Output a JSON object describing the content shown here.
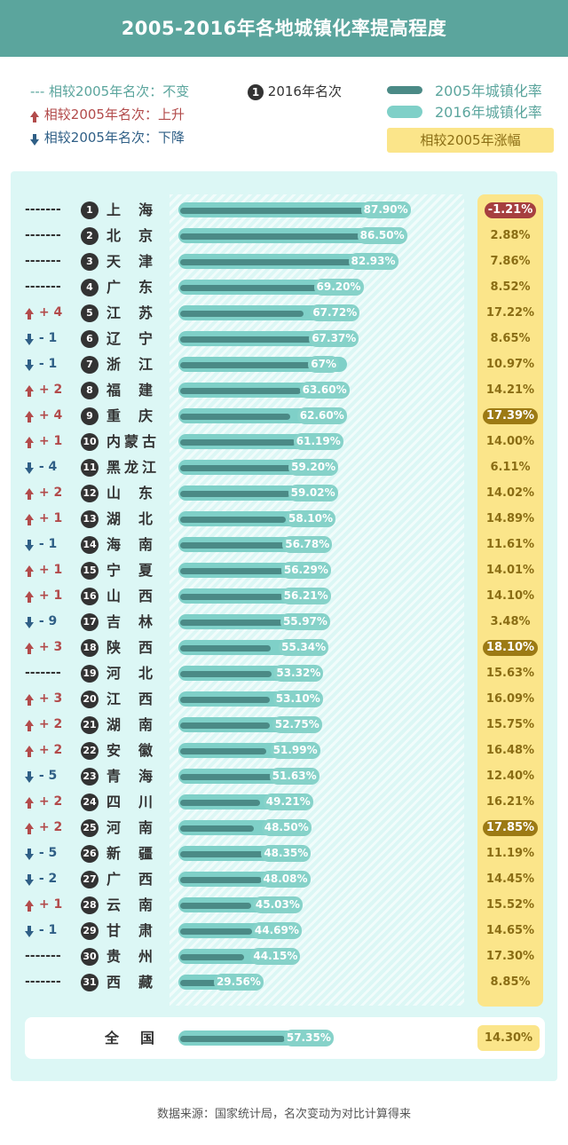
{
  "title": "2005-2016年各地城镇化率提高程度",
  "legend": {
    "same": "相较2005年名次：不变",
    "same_prefix": "---",
    "up": "相较2005年名次：上升",
    "down": "相较2005年名次：下降",
    "rank_dot": "1",
    "rank_label": "2016年名次",
    "bar2005": "2005年城镇化率",
    "bar2016": "2016年城镇化率",
    "increase": "相较2005年涨幅"
  },
  "colors": {
    "header": "#5ba59d",
    "bar2005": "#4b8a86",
    "bar2016": "#7fd0c8",
    "increase_bg": "#fbe58a",
    "up": "#b24b4b",
    "down": "#2f5f86"
  },
  "chart_data": {
    "type": "bar",
    "title": "2005-2016年各地城镇化率提高程度",
    "series_names": [
      "2005年城镇化率",
      "2016年城镇化率",
      "相较2005年涨幅"
    ],
    "rows": [
      {
        "rank": "1",
        "name": "上海",
        "dir": "same",
        "change": "-------",
        "rate2016": 87.9,
        "label2016": "87.90%",
        "increase": -1.21,
        "inc_label": "-1.21%",
        "hl": "neg"
      },
      {
        "rank": "2",
        "name": "北京",
        "dir": "same",
        "change": "-------",
        "rate2016": 86.5,
        "label2016": "86.50%",
        "increase": 2.88,
        "inc_label": "2.88%",
        "hl": ""
      },
      {
        "rank": "3",
        "name": "天津",
        "dir": "same",
        "change": "-------",
        "rate2016": 82.93,
        "label2016": "82.93%",
        "increase": 7.86,
        "inc_label": "7.86%",
        "hl": ""
      },
      {
        "rank": "4",
        "name": "广东",
        "dir": "same",
        "change": "-------",
        "rate2016": 69.2,
        "label2016": "69.20%",
        "increase": 8.52,
        "inc_label": "8.52%",
        "hl": ""
      },
      {
        "rank": "5",
        "name": "江苏",
        "dir": "up",
        "change": "+ 4",
        "rate2016": 67.72,
        "label2016": "67.72%",
        "increase": 17.22,
        "inc_label": "17.22%",
        "hl": ""
      },
      {
        "rank": "6",
        "name": "辽宁",
        "dir": "down",
        "change": "- 1",
        "rate2016": 67.37,
        "label2016": "67.37%",
        "increase": 8.65,
        "inc_label": "8.65%",
        "hl": ""
      },
      {
        "rank": "7",
        "name": "浙江",
        "dir": "down",
        "change": "- 1",
        "rate2016": 67,
        "label2016": "67%",
        "increase": 10.97,
        "inc_label": "10.97%",
        "hl": ""
      },
      {
        "rank": "8",
        "name": "福建",
        "dir": "up",
        "change": "+ 2",
        "rate2016": 63.6,
        "label2016": "63.60%",
        "increase": 14.21,
        "inc_label": "14.21%",
        "hl": ""
      },
      {
        "rank": "9",
        "name": "重庆",
        "dir": "up",
        "change": "+ 4",
        "rate2016": 62.6,
        "label2016": "62.60%",
        "increase": 17.39,
        "inc_label": "17.39%",
        "hl": "pos"
      },
      {
        "rank": "10",
        "name": "内蒙古",
        "dir": "up",
        "change": "+ 1",
        "rate2016": 61.19,
        "label2016": "61.19%",
        "increase": 14.0,
        "inc_label": "14.00%",
        "hl": ""
      },
      {
        "rank": "11",
        "name": "黑龙江",
        "dir": "down",
        "change": "- 4",
        "rate2016": 59.2,
        "label2016": "59.20%",
        "increase": 6.11,
        "inc_label": "6.11%",
        "hl": ""
      },
      {
        "rank": "12",
        "name": "山东",
        "dir": "up",
        "change": "+ 2",
        "rate2016": 59.02,
        "label2016": "59.02%",
        "increase": 14.02,
        "inc_label": "14.02%",
        "hl": ""
      },
      {
        "rank": "13",
        "name": "湖北",
        "dir": "up",
        "change": "+ 1",
        "rate2016": 58.1,
        "label2016": "58.10%",
        "increase": 14.89,
        "inc_label": "14.89%",
        "hl": ""
      },
      {
        "rank": "14",
        "name": "海南",
        "dir": "down",
        "change": "- 1",
        "rate2016": 56.78,
        "label2016": "56.78%",
        "increase": 11.61,
        "inc_label": "11.61%",
        "hl": ""
      },
      {
        "rank": "15",
        "name": "宁夏",
        "dir": "up",
        "change": "+ 1",
        "rate2016": 56.29,
        "label2016": "56.29%",
        "increase": 14.01,
        "inc_label": "14.01%",
        "hl": ""
      },
      {
        "rank": "16",
        "name": "山西",
        "dir": "up",
        "change": "+ 1",
        "rate2016": 56.21,
        "label2016": "56.21%",
        "increase": 14.1,
        "inc_label": "14.10%",
        "hl": ""
      },
      {
        "rank": "17",
        "name": "吉林",
        "dir": "down",
        "change": "- 9",
        "rate2016": 55.97,
        "label2016": "55.97%",
        "increase": 3.48,
        "inc_label": "3.48%",
        "hl": ""
      },
      {
        "rank": "18",
        "name": "陕西",
        "dir": "up",
        "change": "+ 3",
        "rate2016": 55.34,
        "label2016": "55.34%",
        "increase": 18.1,
        "inc_label": "18.10%",
        "hl": "pos"
      },
      {
        "rank": "19",
        "name": "河北",
        "dir": "same",
        "change": "-------",
        "rate2016": 53.32,
        "label2016": "53.32%",
        "increase": 15.63,
        "inc_label": "15.63%",
        "hl": ""
      },
      {
        "rank": "20",
        "name": "江西",
        "dir": "up",
        "change": "+ 3",
        "rate2016": 53.1,
        "label2016": "53.10%",
        "increase": 16.09,
        "inc_label": "16.09%",
        "hl": ""
      },
      {
        "rank": "21",
        "name": "湖南",
        "dir": "up",
        "change": "+ 2",
        "rate2016": 52.75,
        "label2016": "52.75%",
        "increase": 15.75,
        "inc_label": "15.75%",
        "hl": ""
      },
      {
        "rank": "22",
        "name": "安徽",
        "dir": "up",
        "change": "+ 2",
        "rate2016": 51.99,
        "label2016": "51.99%",
        "increase": 16.48,
        "inc_label": "16.48%",
        "hl": ""
      },
      {
        "rank": "23",
        "name": "青海",
        "dir": "down",
        "change": "- 5",
        "rate2016": 51.63,
        "label2016": "51.63%",
        "increase": 12.4,
        "inc_label": "12.40%",
        "hl": ""
      },
      {
        "rank": "24",
        "name": "四川",
        "dir": "up",
        "change": "+ 2",
        "rate2016": 49.21,
        "label2016": "49.21%",
        "increase": 16.21,
        "inc_label": "16.21%",
        "hl": ""
      },
      {
        "rank": "25",
        "name": "河南",
        "dir": "up",
        "change": "+ 2",
        "rate2016": 48.5,
        "label2016": "48.50%",
        "increase": 17.85,
        "inc_label": "17.85%",
        "hl": "pos"
      },
      {
        "rank": "26",
        "name": "新疆",
        "dir": "down",
        "change": "- 5",
        "rate2016": 48.35,
        "label2016": "48.35%",
        "increase": 11.19,
        "inc_label": "11.19%",
        "hl": ""
      },
      {
        "rank": "27",
        "name": "广西",
        "dir": "down",
        "change": "- 2",
        "rate2016": 48.08,
        "label2016": "48.08%",
        "increase": 14.45,
        "inc_label": "14.45%",
        "hl": ""
      },
      {
        "rank": "28",
        "name": "云南",
        "dir": "up",
        "change": "+ 1",
        "rate2016": 45.03,
        "label2016": "45.03%",
        "increase": 15.52,
        "inc_label": "15.52%",
        "hl": ""
      },
      {
        "rank": "29",
        "name": "甘肃",
        "dir": "down",
        "change": "- 1",
        "rate2016": 44.69,
        "label2016": "44.69%",
        "increase": 14.65,
        "inc_label": "14.65%",
        "hl": ""
      },
      {
        "rank": "30",
        "name": "贵州",
        "dir": "same",
        "change": "-------",
        "rate2016": 44.15,
        "label2016": "44.15%",
        "increase": 17.3,
        "inc_label": "17.30%",
        "hl": ""
      },
      {
        "rank": "31",
        "name": "西藏",
        "dir": "same",
        "change": "-------",
        "rate2016": 29.56,
        "label2016": "29.56%",
        "increase": 8.85,
        "inc_label": "8.85%",
        "hl": ""
      }
    ],
    "national": {
      "name": "全国",
      "rate2016": 57.35,
      "label2016": "57.35%",
      "increase": 14.3,
      "inc_label": "14.30%"
    }
  },
  "source": "数据来源：国家统计局，名次变动为对比计算得来"
}
